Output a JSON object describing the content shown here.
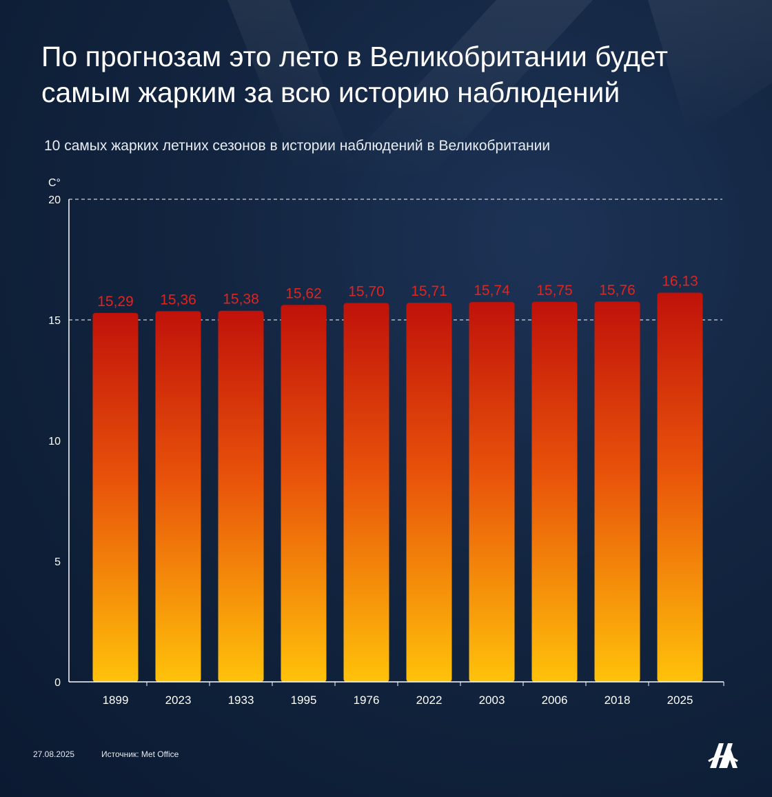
{
  "title": "По прогнозам это лето в Великобритании будет самым жарким за всю историю наблюдений",
  "subtitle": "10 самых жарких летних сезонов в истории наблюдений в Великобритании",
  "footer": {
    "date": "27.08.2025",
    "source": "Источник: Met Office"
  },
  "colors": {
    "bar_top": "#c0120a",
    "bar_bottom": "#ffc20a",
    "value_label": "#e0241e",
    "axis": "#ffffff",
    "grid": "#ffffff"
  },
  "chart_data": {
    "type": "bar",
    "title": "10 самых жарких летних сезонов в истории наблюдений в Великобритании",
    "ylabel": "C°",
    "xlabel": "",
    "ylim": [
      0,
      20
    ],
    "yticks": [
      0,
      5,
      10,
      15,
      20
    ],
    "gridlines": [
      15,
      20
    ],
    "categories": [
      "1899",
      "2023",
      "1933",
      "1995",
      "1976",
      "2022",
      "2003",
      "2006",
      "2018",
      "2025"
    ],
    "values": [
      15.29,
      15.36,
      15.38,
      15.62,
      15.7,
      15.71,
      15.74,
      15.75,
      15.76,
      16.13
    ],
    "value_labels": [
      "15,29",
      "15,36",
      "15,38",
      "15,62",
      "15,70",
      "15,71",
      "15,74",
      "15,75",
      "15,76",
      "16,13"
    ]
  }
}
